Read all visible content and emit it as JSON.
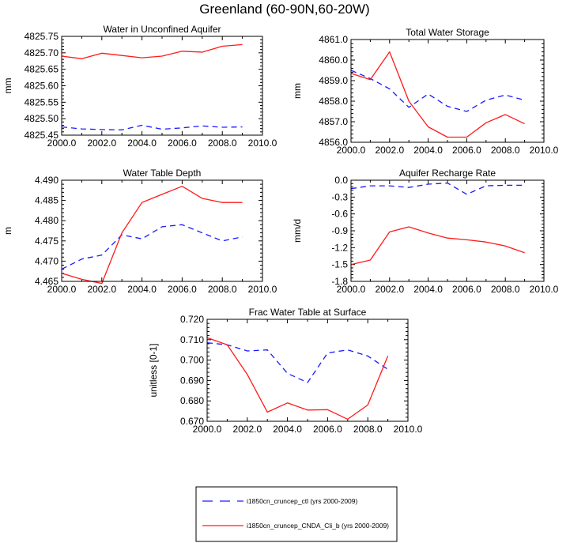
{
  "figure_title": "Greenland (60-90N,60-20W)",
  "legend": {
    "entries": [
      {
        "label": "i1850cn_cruncep_ctl (yrs 2000-2009)",
        "color": "#1a1aff",
        "style": "dashed"
      },
      {
        "label": "i1850cn_cruncep_CNDA_Cli_b (yrs 2000-2009)",
        "color": "#ff1a1a",
        "style": "solid"
      }
    ]
  },
  "chart_data": [
    {
      "type": "line",
      "title": "Water in Unconfined Aquifer",
      "xlabel": "",
      "ylabel": "mm",
      "xlim": [
        2000,
        2010
      ],
      "ylim": [
        4825.45,
        4825.75
      ],
      "xticks": [
        "2000.0",
        "2002.0",
        "2004.0",
        "2006.0",
        "2008.0",
        "2010.0"
      ],
      "yticks": [
        "4825.75",
        "4825.70",
        "4825.65",
        "4825.60",
        "4825.55",
        "4825.50",
        "4825.45"
      ],
      "x": [
        2000,
        2001,
        2002,
        2003,
        2004,
        2005,
        2006,
        2007,
        2008,
        2009
      ],
      "series": [
        {
          "values": [
            4825.475,
            4825.469,
            4825.467,
            4825.466,
            4825.48,
            4825.468,
            4825.472,
            4825.478,
            4825.474,
            4825.475
          ]
        },
        {
          "values": [
            4825.69,
            4825.682,
            4825.699,
            4825.692,
            4825.685,
            4825.69,
            4825.705,
            4825.702,
            4825.72,
            4825.725
          ]
        }
      ]
    },
    {
      "type": "line",
      "title": "Total Water Storage",
      "xlabel": "",
      "ylabel": "mm",
      "xlim": [
        2000,
        2010
      ],
      "ylim": [
        4856.0,
        4861.0
      ],
      "xticks": [
        "2000.0",
        "2002.0",
        "2004.0",
        "2006.0",
        "2008.0",
        "2010.0"
      ],
      "yticks": [
        "4861.0",
        "4860.0",
        "4859.0",
        "4858.0",
        "4857.0",
        "4856.0"
      ],
      "x": [
        2000,
        2001,
        2002,
        2003,
        2004,
        2005,
        2006,
        2007,
        2008,
        2009
      ],
      "series": [
        {
          "values": [
            4859.5,
            4859.1,
            4858.6,
            4857.7,
            4858.35,
            4857.75,
            4857.5,
            4858.05,
            4858.3,
            4858.05
          ]
        },
        {
          "values": [
            4859.35,
            4859.05,
            4860.4,
            4858.0,
            4856.75,
            4856.25,
            4856.25,
            4856.95,
            4857.35,
            4856.9
          ]
        }
      ]
    },
    {
      "type": "line",
      "title": "Water Table Depth",
      "xlabel": "",
      "ylabel": "m",
      "xlim": [
        2000,
        2010
      ],
      "ylim": [
        4.465,
        4.49
      ],
      "xticks": [
        "2000.0",
        "2002.0",
        "2004.0",
        "2006.0",
        "2008.0",
        "2010.0"
      ],
      "yticks": [
        "4.490",
        "4.485",
        "4.480",
        "4.475",
        "4.470",
        "4.465"
      ],
      "x": [
        2000,
        2001,
        2002,
        2003,
        2004,
        2005,
        2006,
        2007,
        2008,
        2009
      ],
      "series": [
        {
          "values": [
            4.468,
            4.4705,
            4.4715,
            4.4765,
            4.4755,
            4.4785,
            4.479,
            4.477,
            4.475,
            4.476
          ]
        },
        {
          "values": [
            4.467,
            4.4655,
            4.4645,
            4.477,
            4.4845,
            4.4865,
            4.4885,
            4.4855,
            4.4845,
            4.4845
          ]
        }
      ]
    },
    {
      "type": "line",
      "title": "Aquifer Recharge Rate",
      "xlabel": "",
      "ylabel": "mm/d",
      "xlim": [
        2000,
        2010
      ],
      "ylim": [
        -1.8,
        0.0
      ],
      "xticks": [
        "2000.0",
        "2002.0",
        "2004.0",
        "2006.0",
        "2008.0",
        "2010.0"
      ],
      "yticks": [
        "0.0",
        "-0.3",
        "-0.6",
        "-0.9",
        "-1.2",
        "-1.5",
        "-1.8"
      ],
      "x": [
        2000,
        2001,
        2002,
        2003,
        2004,
        2005,
        2006,
        2007,
        2008,
        2009
      ],
      "series": [
        {
          "values": [
            -0.15,
            -0.1,
            -0.1,
            -0.13,
            -0.07,
            -0.05,
            -0.25,
            -0.1,
            -0.09,
            -0.09
          ]
        },
        {
          "values": [
            -1.5,
            -1.42,
            -0.92,
            -0.83,
            -0.94,
            -1.03,
            -1.06,
            -1.1,
            -1.17,
            -1.29
          ]
        }
      ]
    },
    {
      "type": "line",
      "title": "Frac Water Table at Surface",
      "xlabel": "",
      "ylabel": "unitless [0-1]",
      "xlim": [
        2000,
        2010
      ],
      "ylim": [
        0.67,
        0.72
      ],
      "xticks": [
        "2000.0",
        "2002.0",
        "2004.0",
        "2006.0",
        "2008.0",
        "2010.0"
      ],
      "yticks": [
        "0.720",
        "0.710",
        "0.700",
        "0.690",
        "0.680",
        "0.670"
      ],
      "x": [
        2000,
        2001,
        2002,
        2003,
        2004,
        2005,
        2006,
        2007,
        2008,
        2009
      ],
      "series": [
        {
          "values": [
            0.7085,
            0.7075,
            0.7045,
            0.705,
            0.6935,
            0.689,
            0.7035,
            0.705,
            0.702,
            0.6955
          ]
        },
        {
          "values": [
            0.711,
            0.7075,
            0.693,
            0.6745,
            0.679,
            0.6755,
            0.6757,
            0.671,
            0.678,
            0.702
          ]
        }
      ]
    }
  ]
}
